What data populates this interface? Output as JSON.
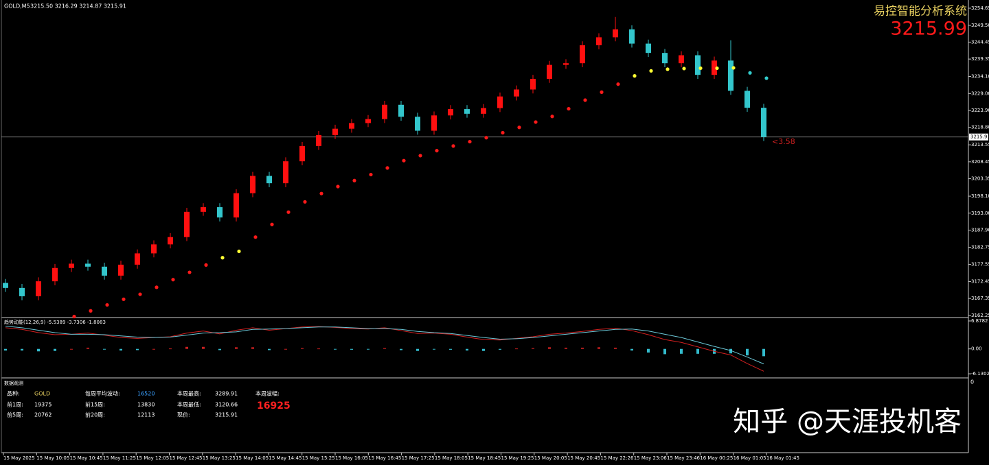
{
  "header": {
    "symbol": "GOLD,M5",
    "ohlc": "3215.50 3216.29 3214.87 3215.91",
    "brand": "易控智能分析系统",
    "price": "3215.99",
    "delta": "<3.58"
  },
  "chart_data": [
    {
      "type": "candlestick",
      "open": [
        3172.0,
        3170.5,
        3168.0,
        3172.5,
        3176.5,
        3177.8,
        3176.9,
        3174.2,
        3177.5,
        3180.9,
        3183.6,
        3185.8,
        3193.4,
        3194.8,
        3191.7,
        3199.0,
        3204.2,
        3202.0,
        3208.6,
        3213.2,
        3216.5,
        3218.4,
        3220.1,
        3221.3,
        3225.6,
        3222.0,
        3217.8,
        3222.4,
        3224.3,
        3222.9,
        3224.6,
        3228.1,
        3230.2,
        3233.4,
        3237.6,
        3238.1,
        3243.5,
        3245.9,
        3248.3,
        3244.0,
        3241.2,
        3238.1,
        3240.5,
        3234.6,
        3238.9,
        3229.8,
        3224.7
      ],
      "high": [
        3173.2,
        3171.7,
        3173.7,
        3177.7,
        3179.0,
        3179.0,
        3178.1,
        3178.7,
        3182.1,
        3184.8,
        3187.0,
        3194.6,
        3196.0,
        3196.0,
        3200.2,
        3205.4,
        3205.4,
        3209.8,
        3214.4,
        3217.7,
        3219.6,
        3221.3,
        3222.5,
        3226.8,
        3226.8,
        3223.2,
        3223.6,
        3225.5,
        3225.5,
        3225.8,
        3229.3,
        3231.4,
        3234.6,
        3238.8,
        3239.3,
        3244.7,
        3247.1,
        3252.0,
        3249.5,
        3245.2,
        3242.4,
        3241.7,
        3241.7,
        3240.1,
        3245.0,
        3231.0,
        3225.9
      ],
      "low": [
        3169.3,
        3166.8,
        3166.8,
        3171.3,
        3175.3,
        3175.7,
        3173.0,
        3173.0,
        3176.3,
        3179.7,
        3182.4,
        3184.6,
        3192.2,
        3190.5,
        3190.5,
        3197.8,
        3200.8,
        3200.8,
        3207.4,
        3212.0,
        3215.3,
        3217.2,
        3218.9,
        3220.1,
        3220.8,
        3216.6,
        3216.6,
        3221.2,
        3221.7,
        3221.7,
        3223.4,
        3226.9,
        3229.0,
        3232.2,
        3236.4,
        3236.9,
        3242.3,
        3244.7,
        3242.8,
        3240.0,
        3236.9,
        3236.9,
        3233.4,
        3233.4,
        3228.6,
        3223.5,
        3214.7
      ],
      "close": [
        3170.5,
        3168.0,
        3172.5,
        3176.5,
        3177.8,
        3176.9,
        3174.2,
        3177.5,
        3180.9,
        3183.6,
        3185.8,
        3193.4,
        3194.8,
        3191.7,
        3199.0,
        3204.2,
        3202.0,
        3208.6,
        3213.2,
        3216.5,
        3218.4,
        3220.1,
        3221.3,
        3225.6,
        3222.0,
        3217.8,
        3222.4,
        3224.3,
        3222.9,
        3224.6,
        3228.1,
        3230.2,
        3233.4,
        3237.6,
        3238.1,
        3243.5,
        3245.9,
        3248.3,
        3244.0,
        3241.2,
        3238.1,
        3240.5,
        3234.6,
        3238.9,
        3229.8,
        3224.7,
        3215.91
      ],
      "up_color": "#ff1010",
      "down_color": "#33c6cc",
      "ylim": [
        3161.8,
        3256.5
      ],
      "yticks": [
        {
          "value": 3254.65,
          "label": "3254.65"
        },
        {
          "value": 3249.5,
          "label": "3249.50"
        },
        {
          "value": 3244.45,
          "label": "3244.45"
        },
        {
          "value": 3239.35,
          "label": "3239.35"
        },
        {
          "value": 3234.1,
          "label": "3234.10"
        },
        {
          "value": 3229.0,
          "label": "3229.00"
        },
        {
          "value": 3223.9,
          "label": "3223.90"
        },
        {
          "value": 3218.8,
          "label": "3218.80"
        },
        {
          "value": 3213.55,
          "label": "3213.55"
        },
        {
          "value": 3208.45,
          "label": "3208.45"
        },
        {
          "value": 3203.35,
          "label": "3203.35"
        },
        {
          "value": 3198.1,
          "label": "3198.10"
        },
        {
          "value": 3193.0,
          "label": "3193.00"
        },
        {
          "value": 3187.9,
          "label": "3187.90"
        },
        {
          "value": 3182.75,
          "label": "3182.75"
        },
        {
          "value": 3177.55,
          "label": "3177.55"
        },
        {
          "value": 3172.45,
          "label": "3172.45"
        },
        {
          "value": 3167.35,
          "label": "3167.35"
        },
        {
          "value": 3162.25,
          "label": "3162.25"
        }
      ],
      "current_price": {
        "value": 3215.91,
        "label": "3215.91"
      },
      "ma": {
        "values": [
          null,
          null,
          null,
          null,
          3161.9,
          3163.6,
          3165.4,
          3167.1,
          3168.6,
          3170.7,
          3173.0,
          3175.2,
          3177.4,
          3179.6,
          3181.5,
          3185.8,
          3189.6,
          3193.3,
          3196.4,
          3198.9,
          3201.0,
          3202.8,
          3204.6,
          3206.6,
          3208.8,
          3210.3,
          3211.8,
          3213.2,
          3214.5,
          3215.7,
          3217.2,
          3218.8,
          3220.4,
          3222.1,
          3224.4,
          3227.0,
          3229.4,
          3231.8,
          3234.3,
          3235.8,
          3236.3,
          3236.5,
          3236.6,
          3236.6,
          3236.7,
          3235.2,
          3233.6
        ],
        "colors": [
          null,
          null,
          null,
          null,
          "#ff1a1a",
          "#ff1a1a",
          "#ff1a1a",
          "#ff1a1a",
          "#ff1a1a",
          "#ff1a1a",
          "#ff1a1a",
          "#ff1a1a",
          "#ff1a1a",
          "#ffff33",
          "#ffff33",
          "#ff1a1a",
          "#ff1a1a",
          "#ff1a1a",
          "#ff1a1a",
          "#ff1a1a",
          "#ff1a1a",
          "#ff1a1a",
          "#ff1a1a",
          "#ff1a1a",
          "#ff1a1a",
          "#ff1a1a",
          "#ff1a1a",
          "#ff1a1a",
          "#ff1a1a",
          "#ff1a1a",
          "#ff1a1a",
          "#ff1a1a",
          "#ff1a1a",
          "#ff1a1a",
          "#ff1a1a",
          "#ff1a1a",
          "#ff1a1a",
          "#ff1a1a",
          "#ffff33",
          "#ffff33",
          "#ffff33",
          "#ffff33",
          "#ffff33",
          "#ffff33",
          "#ffff33",
          "#33cccc",
          "#33cccc"
        ]
      },
      "x_labels": [
        "15 May 2025",
        "15 May 10:05",
        "15 May 10:45",
        "15 May 11:25",
        "15 May 12:05",
        "15 May 12:45",
        "15 May 13:25",
        "15 May 14:05",
        "15 May 14:45",
        "15 May 15:25",
        "15 May 16:05",
        "15 May 16:45",
        "15 May 17:25",
        "15 May 18:05",
        "15 May 18:45",
        "15 May 19:25",
        "15 May 20:05",
        "15 May 20:45",
        "15 May 22:26",
        "15 May 23:06",
        "15 May 23:46",
        "16 May 00:25",
        "16 May 01:05",
        "16 May 01:45"
      ]
    },
    {
      "type": "macd",
      "title": "趋势动能(12,26,9) -5.5389 -3.7306 -1.8083",
      "ylim": [
        -6.97,
        7.55
      ],
      "yticks": [
        {
          "value": 6.8782,
          "label": "6.8782"
        },
        {
          "value": 0,
          "label": "0.00"
        },
        {
          "value": -6.1302,
          "label": "-6.1302"
        }
      ],
      "series": [
        {
          "color": "#d42020",
          "values": [
            5.2,
            4.8,
            4.0,
            3.5,
            3.6,
            3.9,
            3.4,
            2.8,
            2.6,
            2.8,
            3.0,
            3.9,
            4.4,
            3.7,
            4.6,
            5.2,
            4.6,
            5.0,
            5.4,
            5.5,
            5.3,
            5.0,
            4.9,
            5.2,
            4.5,
            3.8,
            3.9,
            3.6,
            2.9,
            2.3,
            2.2,
            2.6,
            3.0,
            3.6,
            3.9,
            4.3,
            4.8,
            5.1,
            4.5,
            3.5,
            2.3,
            1.6,
            0.5,
            -0.6,
            -1.5,
            -3.6,
            -5.5
          ]
        },
        {
          "color": "#6cc8d8",
          "values": [
            5.6,
            5.2,
            4.6,
            4.0,
            3.6,
            3.6,
            3.5,
            3.2,
            2.9,
            2.8,
            2.9,
            3.4,
            3.9,
            4.0,
            4.2,
            4.8,
            4.9,
            5.0,
            5.2,
            5.4,
            5.4,
            5.2,
            5.0,
            5.0,
            4.8,
            4.3,
            4.0,
            3.8,
            3.3,
            2.8,
            2.4,
            2.5,
            2.8,
            3.2,
            3.6,
            4.0,
            4.4,
            4.8,
            4.9,
            4.4,
            3.6,
            2.8,
            1.7,
            0.6,
            -0.4,
            -2.0,
            -3.7
          ]
        }
      ],
      "histogram": [
        -0.4,
        -0.4,
        -0.6,
        -0.5,
        0,
        0.3,
        -0.1,
        -0.4,
        -0.3,
        0,
        0.1,
        0.5,
        0.5,
        -0.3,
        0.4,
        0.4,
        -0.3,
        0,
        0.2,
        0.1,
        -0.1,
        -0.2,
        -0.1,
        0.2,
        -0.3,
        -0.5,
        -0.1,
        -0.2,
        -0.4,
        -0.5,
        -0.2,
        0.1,
        0.2,
        0.4,
        0.3,
        0.3,
        0.4,
        0.3,
        -0.4,
        -0.9,
        -1.3,
        -1.2,
        -1.2,
        -1.2,
        -1.1,
        -1.6,
        -1.8
      ],
      "up_color": "#cc2020",
      "down_color": "#33bbcc"
    }
  ],
  "info": {
    "title": "数据观测",
    "axis_label": "0",
    "items": [
      {
        "label": "品种:",
        "value": "GOLD",
        "color": "#e8d060"
      },
      {
        "label": "前1周:",
        "value": "19375"
      },
      {
        "label": "前5周:",
        "value": "20762"
      },
      {
        "label": "每周平均波动:",
        "value": "16520",
        "color": "#3aa0ff"
      },
      {
        "label": "前15周:",
        "value": "13830"
      },
      {
        "label": "前20周:",
        "value": "12113"
      },
      {
        "label": "本周最高:",
        "value": "3289.91"
      },
      {
        "label": "本周最低:",
        "value": "3120.66"
      },
      {
        "label": "现价:",
        "value": "3215.91"
      },
      {
        "label": "本周波幅:",
        "value": "16925",
        "color": "#ff2020"
      }
    ]
  },
  "watermark": "知乎 @天涯投机客"
}
